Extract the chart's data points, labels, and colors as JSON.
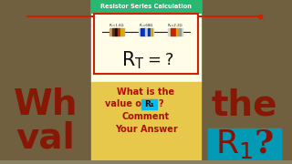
{
  "bg_color": "#888060",
  "center_panel_color": "#fffde8",
  "header_bg": "#2ab870",
  "header_text": "Resistor Series Calculation",
  "header_text_color": "#ffffff",
  "circuit_border_color": "#cc2200",
  "r1_label": "R₁=1.6Ω",
  "r2_label": "R₂=68Ω",
  "r3_label": "R₃=2.2Ω",
  "bottom_panel_color": "#e8c84a",
  "bottom_text_line1": "What is the",
  "bottom_text_line2": "value of ",
  "bottom_text_r1": "R₁",
  "bottom_text_q": "?",
  "bottom_text_line3": "Comment",
  "bottom_text_line4": "Your Answer",
  "bottom_text_color": "#aa1100",
  "r1_highlight_color": "#00bbee",
  "left_bg_color": "#706040",
  "right_bg_color": "#706040",
  "left_text1": "Wh",
  "left_text2": "val",
  "right_text1": "the",
  "right_cyan_bg": "#009ab5",
  "right_r_text": "R"
}
